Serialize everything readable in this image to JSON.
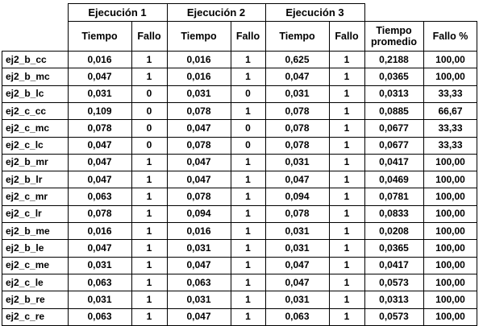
{
  "groups": [
    "Ejecución 1",
    "Ejecución 2",
    "Ejecución 3"
  ],
  "columns": {
    "tiempo": "Tiempo",
    "fallo": "Fallo",
    "tiempo_promedio": "Tiempo\npromedio",
    "fallo_pct": "Fallo %"
  },
  "rows": [
    {
      "name": "ej2_b_cc",
      "t1": "0,016",
      "f1": "1",
      "t2": "0,016",
      "f2": "1",
      "t3": "0,625",
      "f3": "1",
      "avg": "0,2188",
      "pct": "100,00"
    },
    {
      "name": "ej2_b_mc",
      "t1": "0,047",
      "f1": "1",
      "t2": "0,016",
      "f2": "1",
      "t3": "0,047",
      "f3": "1",
      "avg": "0,0365",
      "pct": "100,00"
    },
    {
      "name": "ej2_b_lc",
      "t1": "0,031",
      "f1": "0",
      "t2": "0,031",
      "f2": "0",
      "t3": "0,031",
      "f3": "1",
      "avg": "0,0313",
      "pct": "33,33"
    },
    {
      "name": "ej2_c_cc",
      "t1": "0,109",
      "f1": "0",
      "t2": "0,078",
      "f2": "1",
      "t3": "0,078",
      "f3": "1",
      "avg": "0,0885",
      "pct": "66,67"
    },
    {
      "name": "ej2_c_mc",
      "t1": "0,078",
      "f1": "0",
      "t2": "0,047",
      "f2": "0",
      "t3": "0,078",
      "f3": "1",
      "avg": "0,0677",
      "pct": "33,33"
    },
    {
      "name": "ej2_c_lc",
      "t1": "0,047",
      "f1": "0",
      "t2": "0,078",
      "f2": "0",
      "t3": "0,078",
      "f3": "1",
      "avg": "0,0677",
      "pct": "33,33"
    },
    {
      "name": "ej2_b_mr",
      "t1": "0,047",
      "f1": "1",
      "t2": "0,047",
      "f2": "1",
      "t3": "0,031",
      "f3": "1",
      "avg": "0,0417",
      "pct": "100,00"
    },
    {
      "name": "ej2_b_lr",
      "t1": "0,047",
      "f1": "1",
      "t2": "0,047",
      "f2": "1",
      "t3": "0,047",
      "f3": "1",
      "avg": "0,0469",
      "pct": "100,00"
    },
    {
      "name": "ej2_c_mr",
      "t1": "0,063",
      "f1": "1",
      "t2": "0,078",
      "f2": "1",
      "t3": "0,094",
      "f3": "1",
      "avg": "0,0781",
      "pct": "100,00"
    },
    {
      "name": "ej2_c_lr",
      "t1": "0,078",
      "f1": "1",
      "t2": "0,094",
      "f2": "1",
      "t3": "0,078",
      "f3": "1",
      "avg": "0,0833",
      "pct": "100,00"
    },
    {
      "name": "ej2_b_me",
      "t1": "0,016",
      "f1": "1",
      "t2": "0,016",
      "f2": "1",
      "t3": "0,031",
      "f3": "1",
      "avg": "0,0208",
      "pct": "100,00"
    },
    {
      "name": "ej2_b_le",
      "t1": "0,047",
      "f1": "1",
      "t2": "0,031",
      "f2": "1",
      "t3": "0,031",
      "f3": "1",
      "avg": "0,0365",
      "pct": "100,00"
    },
    {
      "name": "ej2_c_me",
      "t1": "0,031",
      "f1": "1",
      "t2": "0,047",
      "f2": "1",
      "t3": "0,047",
      "f3": "1",
      "avg": "0,0417",
      "pct": "100,00"
    },
    {
      "name": "ej2_c_le",
      "t1": "0,063",
      "f1": "1",
      "t2": "0,063",
      "f2": "1",
      "t3": "0,047",
      "f3": "1",
      "avg": "0,0573",
      "pct": "100,00"
    },
    {
      "name": "ej2_b_re",
      "t1": "0,031",
      "f1": "1",
      "t2": "0,031",
      "f2": "1",
      "t3": "0,031",
      "f3": "1",
      "avg": "0,0313",
      "pct": "100,00"
    },
    {
      "name": "ej2_c_re",
      "t1": "0,063",
      "f1": "1",
      "t2": "0,047",
      "f2": "1",
      "t3": "0,063",
      "f3": "1",
      "avg": "0,0573",
      "pct": "100,00"
    }
  ]
}
